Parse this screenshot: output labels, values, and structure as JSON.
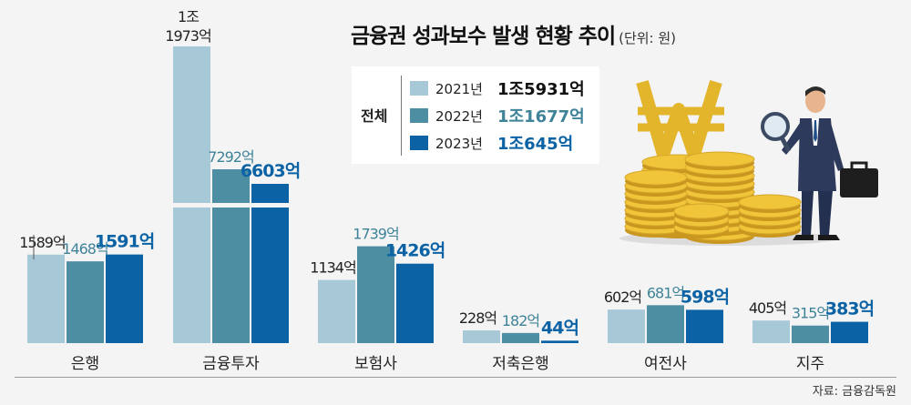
{
  "title": "금융권 성과보수 발생 현황 추이",
  "unit": "(단위: 원)",
  "source": "자료: 금융감독원",
  "legend": {
    "total_label": "전체",
    "rows": [
      {
        "year": "2021년",
        "amount": "1조5931억",
        "color": "#a7c8d6"
      },
      {
        "year": "2022년",
        "amount": "1조1677억",
        "color": "#4e8ea3"
      },
      {
        "year": "2023년",
        "amount": "1조645억",
        "color": "#0b62a4"
      }
    ]
  },
  "colors": {
    "s2021": "#a7c8d6",
    "s2022": "#4e8ea3",
    "s2023": "#0b62a4",
    "label2022": "#3f8399",
    "label2023": "#0b62a4",
    "text": "#222222"
  },
  "illustration": "businessman-with-magnifier-and-won-coins",
  "chart_data": {
    "type": "bar",
    "title": "금융권 성과보수 발생 현황 추이",
    "unit": "억원",
    "categories": [
      "은행",
      "금융투자",
      "보험사",
      "저축은행",
      "여전사",
      "지주"
    ],
    "series": [
      {
        "name": "2021년",
        "values": [
          1589,
          11973,
          1134,
          228,
          602,
          405
        ]
      },
      {
        "name": "2022년",
        "values": [
          1468,
          7292,
          1739,
          182,
          681,
          315
        ]
      },
      {
        "name": "2023년",
        "values": [
          1591,
          6603,
          1426,
          44,
          598,
          383
        ]
      }
    ],
    "data_labels": [
      [
        "1589억",
        "1조\n1973억",
        "1134억",
        "228억",
        "602억",
        "405억"
      ],
      [
        "1468억",
        "7292억",
        "1739억",
        "182억",
        "681억",
        "315억"
      ],
      [
        "1591억",
        "6603억",
        "1426억",
        "44억",
        "598억",
        "383억"
      ]
    ],
    "axis_break": {
      "category": "금융투자",
      "note": "broken axis on 금융투자 bars"
    }
  }
}
